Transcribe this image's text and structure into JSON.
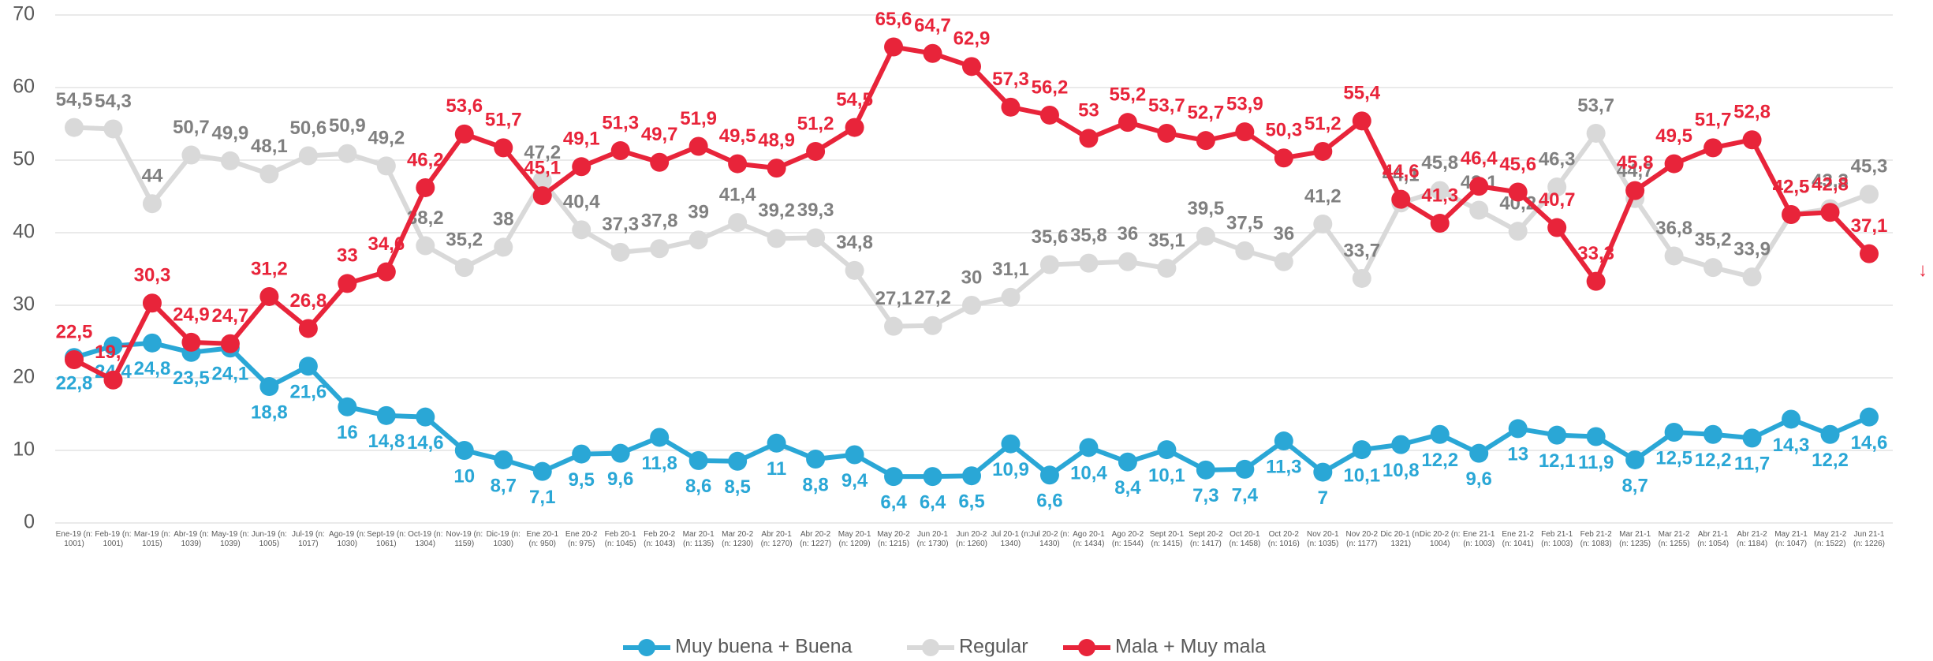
{
  "chart_data": {
    "type": "line",
    "categories": [
      "Ene-19 (n: 1001)",
      "Feb-19 (n: 1001)",
      "Mar-19 (n: 1015)",
      "Abr-19 (n: 1039)",
      "May-19 (n: 1039)",
      "Jun-19 (n: 1005)",
      "Jul-19 (n: 1017)",
      "Ago-19 (n: 1030)",
      "Sept-19 (n: 1061)",
      "Oct-19 (n: 1304)",
      "Nov-19 (n: 1159)",
      "Dic-19 (n: 1030)",
      "Ene 20-1 (n: 950)",
      "Ene 20-2 (n: 975)",
      "Feb 20-1 (n: 1045)",
      "Feb 20-2 (n: 1043)",
      "Mar 20-1 (n: 1135)",
      "Mar 20-2 (n: 1230)",
      "Abr 20-1 (n: 1270)",
      "Abr 20-2 (n: 1227)",
      "May 20-1 (n: 1209)",
      "May 20-2 (n: 1215)",
      "Jun 20-1 (n: 1730)",
      "Jun 20-2 (n: 1260)",
      "Jul 20-1 (n: 1340)",
      "Jul 20-2 (n: 1430)",
      "Ago 20-1 (n: 1434)",
      "Ago 20-2 (n: 1544)",
      "Sept 20-1 (n: 1415)",
      "Sept 20-2 (n: 1417)",
      "Oct 20-1 (n: 1458)",
      "Oct 20-2 (n: 1016)",
      "Nov 20-1 (n: 1035)",
      "Nov 20-2 (n: 1177)",
      "Dic 20-1 (n: 1321)",
      "Dic 20-2 (n: 1004)",
      "Ene 21-1 (n: 1003)",
      "Ene 21-2 (n: 1041)",
      "Feb 21-1 (n: 1003)",
      "Feb 21-2 (n: 1083)",
      "Mar 21-1 (n: 1235)",
      "Mar 21-2 (n: 1255)",
      "Abr 21-1 (n: 1054)",
      "Abr 21-2 (n: 1184)",
      "May 21-1 (n: 1047)",
      "May 21-2 (n: 1522)",
      "Jun 21-1 (n: 1226)"
    ],
    "series": [
      {
        "name": "Muy buena + Buena",
        "color": "#2aa7d6",
        "label_color": "#2aa7d6",
        "label_side": "below",
        "values": [
          22.8,
          24.4,
          24.8,
          23.5,
          24.1,
          18.8,
          21.6,
          16,
          14.8,
          14.6,
          10,
          8.7,
          7.1,
          9.5,
          9.6,
          11.8,
          8.6,
          8.5,
          11,
          8.8,
          9.4,
          6.4,
          6.4,
          6.5,
          10.9,
          6.6,
          10.4,
          8.4,
          10.1,
          7.3,
          7.4,
          11.3,
          7,
          10.1,
          10.8,
          12.2,
          9.6,
          13,
          12.1,
          11.9,
          8.7,
          12.5,
          12.2,
          11.7,
          14.3,
          12.2,
          14.6
        ],
        "value_labels": [
          "22,8",
          "24,4",
          "24,8",
          "23,5",
          "24,1",
          "18,8",
          "21,6",
          "16",
          "14,8",
          "14,6",
          "10",
          "8,7",
          "7,1",
          "9,5",
          "9,6",
          "11,8",
          "8,6",
          "8,5",
          "11",
          "8,8",
          "9,4",
          "6,4",
          "6,4",
          "6,5",
          "10,9",
          "6,6",
          "10,4",
          "8,4",
          "10,1",
          "7,3",
          "7,4",
          "11,3",
          "7",
          "10,1",
          "10,8",
          "12,2",
          "9,6",
          "13",
          "12,1",
          "11,9",
          "8,7",
          "12,5",
          "12,2",
          "11,7",
          "14,3",
          "12,2",
          "14,6"
        ]
      },
      {
        "name": "Regular",
        "color": "#d9d9d9",
        "label_color": "#808080",
        "label_side": "above",
        "values": [
          54.5,
          54.3,
          44,
          50.7,
          49.9,
          48.1,
          50.6,
          50.9,
          49.2,
          38.2,
          35.2,
          38,
          47.2,
          40.4,
          37.3,
          37.8,
          39,
          41.4,
          39.2,
          39.3,
          34.8,
          27.1,
          27.2,
          30,
          31.1,
          35.6,
          35.8,
          36,
          35.1,
          39.5,
          37.5,
          36,
          41.2,
          33.7,
          44.1,
          45.8,
          43.1,
          40.2,
          46.3,
          53.7,
          44.7,
          36.8,
          35.2,
          33.9,
          42.5,
          43.3,
          45.3
        ],
        "value_labels": [
          "54,5",
          "54,3",
          "44",
          "50,7",
          "49,9",
          "48,1",
          "50,6",
          "50,9",
          "49,2",
          "38,2",
          "35,2",
          "38",
          "47,2",
          "40,4",
          "37,3",
          "37,8",
          "39",
          "41,4",
          "39,2",
          "39,3",
          "34,8",
          "27,1",
          "27,2",
          "30",
          "31,1",
          "35,6",
          "35,8",
          "36",
          "35,1",
          "39,5",
          "37,5",
          "36",
          "41,2",
          "33,7",
          "44,1",
          "45,8",
          "43,1",
          "40,2",
          "46,3",
          "53,7",
          "44,7",
          "36,8",
          "35,2",
          "33,9",
          "42,5",
          "43,3",
          "45,3"
        ]
      },
      {
        "name": "Mala + Muy mala",
        "color": "#e8243a",
        "label_color": "#e8243a",
        "label_side": "above",
        "values": [
          22.5,
          19.7,
          30.3,
          24.9,
          24.7,
          31.2,
          26.8,
          33,
          34.6,
          46.2,
          53.6,
          51.7,
          45.1,
          49.1,
          51.3,
          49.7,
          51.9,
          49.5,
          48.9,
          51.2,
          54.5,
          65.6,
          64.7,
          62.9,
          57.3,
          56.2,
          53,
          55.2,
          53.7,
          52.7,
          53.9,
          50.3,
          51.2,
          55.4,
          44.6,
          41.3,
          46.4,
          45.6,
          40.7,
          33.3,
          45.8,
          49.5,
          51.7,
          52.8,
          42.5,
          42.8,
          37.1
        ],
        "value_labels": [
          "22,5",
          "19,7",
          "30,3",
          "24,9",
          "24,7",
          "31,2",
          "26,8",
          "33",
          "34,6",
          "46,2",
          "53,6",
          "51,7",
          "45,1",
          "49,1",
          "51,3",
          "49,7",
          "51,9",
          "49,5",
          "48,9",
          "51,2",
          "54,5",
          "65,6",
          "64,7",
          "62,9",
          "57,3",
          "56,2",
          "53",
          "55,2",
          "53,7",
          "52,7",
          "53,9",
          "50,3",
          "51,2",
          "55,4",
          "44,6",
          "41,3",
          "46,4",
          "45,6",
          "40,7",
          "33,3",
          "45,8",
          "49,5",
          "51,7",
          "52,8",
          "42,5",
          "42,8",
          "37,1"
        ]
      }
    ],
    "annotation": "↓",
    "ylim": [
      0,
      70
    ],
    "yticks": [
      0,
      10,
      20,
      30,
      40,
      50,
      60,
      70
    ],
    "grid": true,
    "legend": "bottom"
  }
}
